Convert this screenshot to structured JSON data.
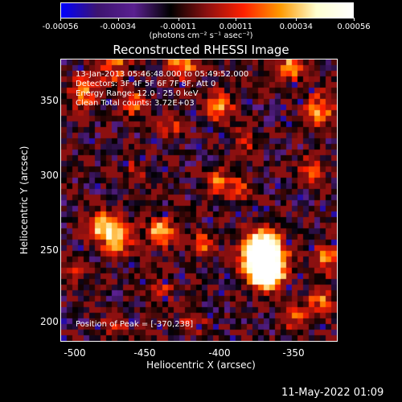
{
  "colorbar": {
    "ticks": [
      "-0.00056",
      "-0.00034",
      "-0.00011",
      "0.00011",
      "0.00034",
      "0.00056"
    ],
    "tick_values": [
      -0.00056,
      -0.00034,
      -0.00011,
      0.00011,
      0.00034,
      0.00056
    ],
    "units": "(photons cm⁻² s⁻¹ asec⁻²)",
    "colors": [
      "#0000ff",
      "#3d1470",
      "#5a2090",
      "#000000",
      "#8c1010",
      "#ff2000",
      "#ff9900",
      "#ffffd0",
      "#ffffff"
    ]
  },
  "title": "Reconstructed RHESSI Image",
  "info": {
    "line1": "13-Jan-2013 05:46:48.000 to 05:49:52.000",
    "line2": "Detectors: 3F 4F 5F 6F 7F 8F, Att 0",
    "line3": "Energy Range: 12.0 - 25.0 keV",
    "line4": "Clean    Total counts: 3.72E+03"
  },
  "peak_text": "Position of Peak = [-370,238]",
  "x_ticks": [
    "-500",
    "-450",
    "-400",
    "-350"
  ],
  "y_ticks": [
    "350",
    "300",
    "250",
    "200"
  ],
  "xlabel": "Heliocentric X (arcsec)",
  "ylabel": "Heliocentric Y (arcsec)",
  "footer": "11-May-2022 01:09",
  "chart_data": {
    "type": "heatmap",
    "title": "Reconstructed RHESSI Image",
    "xlabel": "Heliocentric X (arcsec)",
    "ylabel": "Heliocentric Y (arcsec)",
    "xlim": [
      -507,
      -321
    ],
    "ylim": [
      185,
      374
    ],
    "x_ticks": [
      -500,
      -450,
      -400,
      -350
    ],
    "y_ticks": [
      350,
      300,
      250,
      200
    ],
    "zlim": [
      -0.00056,
      0.00056
    ],
    "peak": [
      -370,
      238
    ],
    "peak_value": 0.00056
  }
}
